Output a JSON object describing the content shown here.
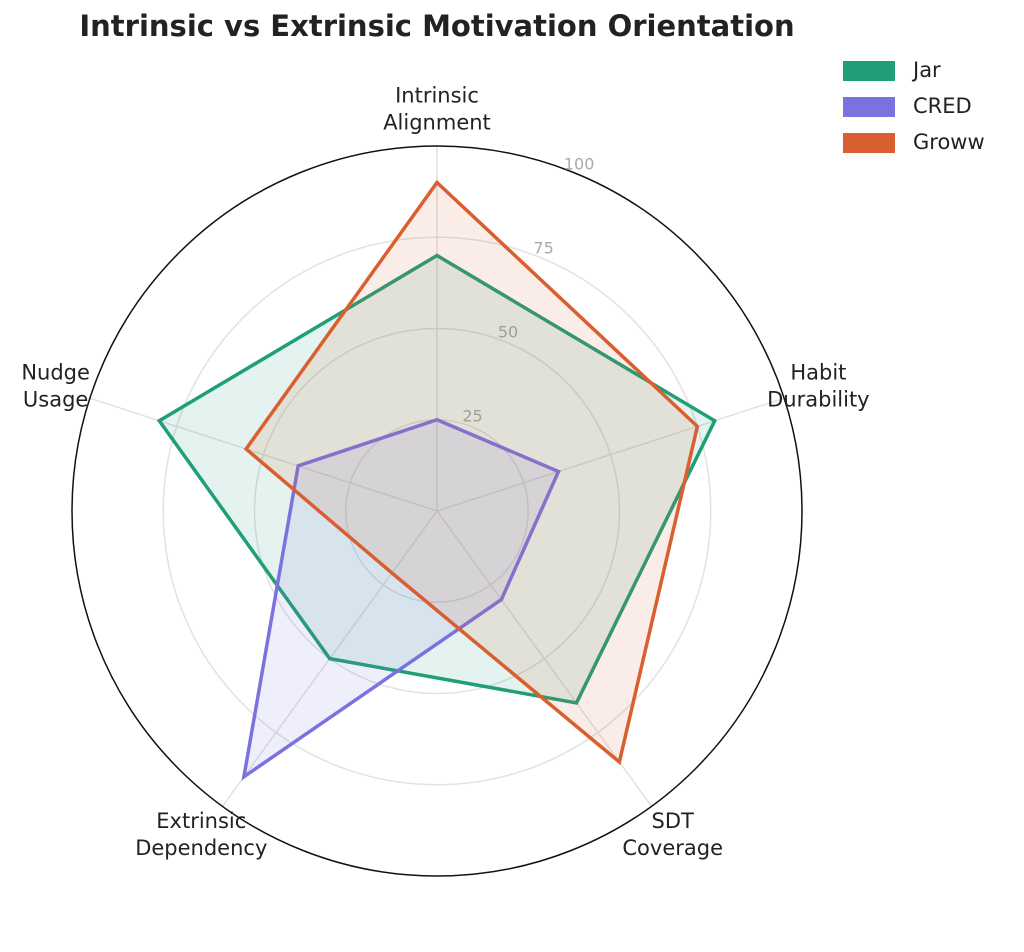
{
  "chart_data": {
    "type": "radar",
    "title": "Intrinsic vs Extrinsic Motivation Orientation",
    "categories": [
      "Intrinsic\nAlignment",
      "Habit\nDurability",
      "SDT\nCoverage",
      "Extrinsic\nDependency",
      "Nudge\nUsage"
    ],
    "series": [
      {
        "name": "Jar",
        "color": "#1f9e78",
        "values": [
          70,
          80,
          65,
          50,
          80
        ]
      },
      {
        "name": "CRED",
        "color": "#7b72e0",
        "values": [
          25,
          35,
          30,
          90,
          40
        ]
      },
      {
        "name": "Groww",
        "color": "#d95f30",
        "values": [
          90,
          75,
          85,
          21,
          55
        ]
      }
    ],
    "ylim": [
      0,
      100
    ],
    "yticks": [
      25,
      50,
      75,
      100
    ],
    "grid": true,
    "legend": "upper right"
  }
}
